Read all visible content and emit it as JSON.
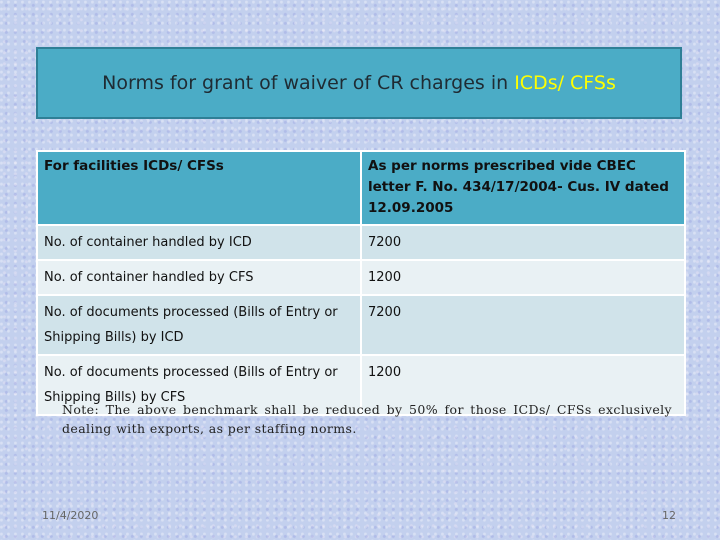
{
  "title": {
    "main": "Norms for grant of waiver of CR charges in",
    "highlight": "ICDs/ CFSs"
  },
  "table": {
    "headers": [
      "For facilities ICDs/ CFSs",
      "As per norms prescribed vide CBEC letter F. No. 434/17/2004- Cus. IV dated 12.09.2005"
    ],
    "rows": [
      {
        "facility": "No. of container handled by ICD",
        "norm": "7200"
      },
      {
        "facility": "No. of container handled by CFS",
        "norm": "1200"
      },
      {
        "facility": "No. of documents processed (Bills of Entry or Shipping Bills) by ICD",
        "norm": "7200"
      },
      {
        "facility": "No. of documents processed (Bills of Entry or Shipping Bills) by CFS",
        "norm": "1200"
      }
    ]
  },
  "note": "Note: The above benchmark shall be reduced by 50% for those ICDs/ CFSs exclusively dealing with exports, as per staffing norms.",
  "footer": {
    "date": "11/4/2020",
    "page": "12"
  },
  "colors": {
    "header_fill": "#4bacc6",
    "highlight": "#ffff00",
    "row_dark": "#d0e3ea",
    "row_light": "#e9f1f4"
  }
}
